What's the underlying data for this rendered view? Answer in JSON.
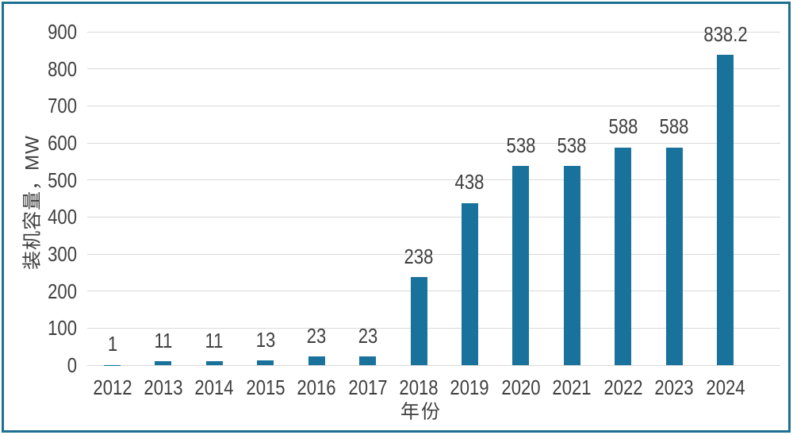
{
  "chart_data": {
    "type": "bar",
    "title": "",
    "categories": [
      "2012",
      "2013",
      "2014",
      "2015",
      "2016",
      "2017",
      "2018",
      "2019",
      "2020",
      "2021",
      "2022",
      "2023",
      "2024"
    ],
    "values": [
      1,
      11,
      11,
      13,
      23,
      23,
      238,
      438,
      538,
      538,
      588,
      588,
      838.2
    ],
    "xlabel": "年份",
    "ylabel": "装机容量，MW",
    "ylim": [
      0,
      900
    ],
    "ytick_step": 100,
    "yticks": [
      0,
      100,
      200,
      300,
      400,
      500,
      600,
      700,
      800,
      900
    ],
    "grid": true,
    "legend": false,
    "data_labels_shown": true,
    "colors": {
      "bar": "#19729c",
      "grid": "#d9d9d9",
      "text": "#3f3f3f",
      "frame": "#1e7092",
      "background": "#ffffff"
    }
  }
}
